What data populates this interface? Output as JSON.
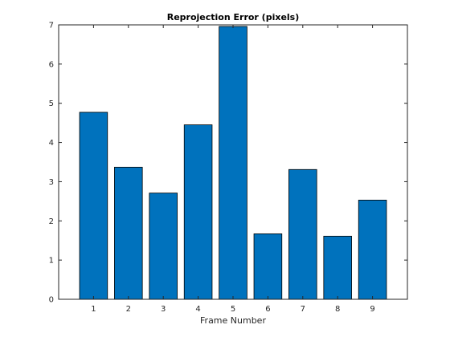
{
  "chart_data": {
    "type": "bar",
    "title": "Reprojection Error (pixels)",
    "xlabel": "Frame Number",
    "ylabel": "",
    "categories": [
      "1",
      "2",
      "3",
      "4",
      "5",
      "6",
      "7",
      "8",
      "9"
    ],
    "values": [
      4.77,
      3.37,
      2.71,
      4.45,
      6.96,
      1.67,
      3.31,
      1.61,
      2.53
    ],
    "xlim": [
      0,
      10
    ],
    "ylim": [
      0,
      7
    ],
    "yticks": [
      "0",
      "1",
      "2",
      "3",
      "4",
      "5",
      "6",
      "7"
    ],
    "grid": false,
    "legend": "none",
    "bar_color": "#0072BD",
    "bar_edge_color": "#000000"
  }
}
